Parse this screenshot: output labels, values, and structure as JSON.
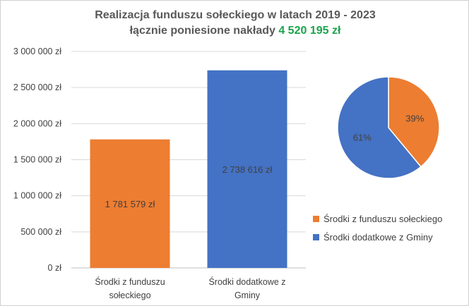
{
  "header": {
    "title_line1": "Realizacja funduszu sołeckiego w latach 2019 - 2023",
    "title_line2_prefix": "łącznie poniesione nakłady ",
    "title_line2_total": "4 520 195 zł"
  },
  "colors": {
    "orange": "#ED7D31",
    "blue": "#4472C4",
    "total_green": "#1AA34A"
  },
  "chart_data": [
    {
      "type": "bar",
      "categories": [
        "Środki z funduszu sołeckiego",
        "Środki dodatkowe z Gminy"
      ],
      "category_label_lines": [
        [
          "Środki z funduszu",
          "sołeckiego"
        ],
        [
          "Środki dodatkowe z",
          "Gminy"
        ]
      ],
      "values": [
        1781579,
        2738616
      ],
      "data_labels": [
        "1 781 579 zł",
        "2 738 616 zł"
      ],
      "ylim": [
        0,
        3000000
      ],
      "yticks": [
        0,
        500000,
        1000000,
        1500000,
        2000000,
        2500000,
        3000000
      ],
      "ytick_labels": [
        "0 zł",
        "500 000 zł",
        "1 000 000 zł",
        "1 500 000 zł",
        "2 000 000 zł",
        "2 500 000 zł",
        "3 000 000 zł"
      ],
      "grid": true,
      "colors": [
        "#ED7D31",
        "#4472C4"
      ]
    },
    {
      "type": "pie",
      "labels": [
        "Środki z funduszu sołeckiego",
        "Środki dodatkowe z Gminy"
      ],
      "values": [
        39,
        61
      ],
      "data_labels": [
        "39%",
        "61%"
      ],
      "colors": [
        "#ED7D31",
        "#4472C4"
      ],
      "legend": "right-bottom"
    }
  ]
}
